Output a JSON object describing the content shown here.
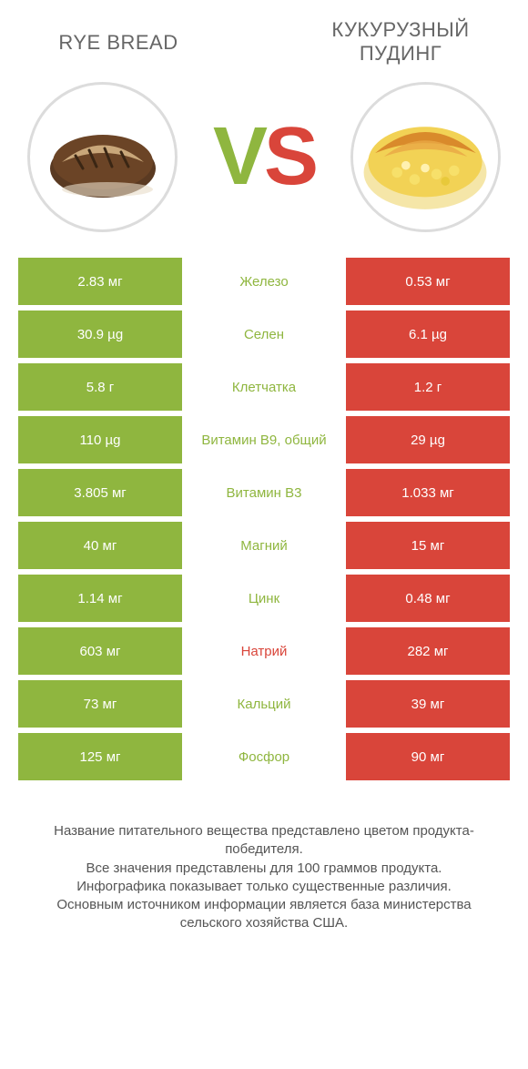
{
  "header": {
    "left_title": "RYE BREAD",
    "right_title": "КУКУРУЗНЫЙ ПУДИНГ",
    "vs_v": "V",
    "vs_s": "S"
  },
  "colors": {
    "left": "#8fb63f",
    "right": "#d9453a",
    "border": "#dcdcdc",
    "text": "#555555"
  },
  "rows": [
    {
      "left": "2.83 мг",
      "label": "Железо",
      "right": "0.53 мг",
      "winner": "left"
    },
    {
      "left": "30.9 µg",
      "label": "Селен",
      "right": "6.1 µg",
      "winner": "left"
    },
    {
      "left": "5.8 г",
      "label": "Клетчатка",
      "right": "1.2 г",
      "winner": "left"
    },
    {
      "left": "110 µg",
      "label": "Витамин B9, общий",
      "right": "29 µg",
      "winner": "left"
    },
    {
      "left": "3.805 мг",
      "label": "Витамин B3",
      "right": "1.033 мг",
      "winner": "left"
    },
    {
      "left": "40 мг",
      "label": "Магний",
      "right": "15 мг",
      "winner": "left"
    },
    {
      "left": "1.14 мг",
      "label": "Цинк",
      "right": "0.48 мг",
      "winner": "left"
    },
    {
      "left": "603 мг",
      "label": "Натрий",
      "right": "282 мг",
      "winner": "right"
    },
    {
      "left": "73 мг",
      "label": "Кальций",
      "right": "39 мг",
      "winner": "left"
    },
    {
      "left": "125 мг",
      "label": "Фосфор",
      "right": "90 мг",
      "winner": "left"
    }
  ],
  "footer": {
    "line1": "Название питательного вещества представлено цветом продукта-победителя.",
    "line2": "Все значения представлены для 100 граммов продукта.",
    "line3": "Инфографика показывает только существенные различия.",
    "line4": "Основным источником информации является база министерства сельского хозяйства США."
  }
}
